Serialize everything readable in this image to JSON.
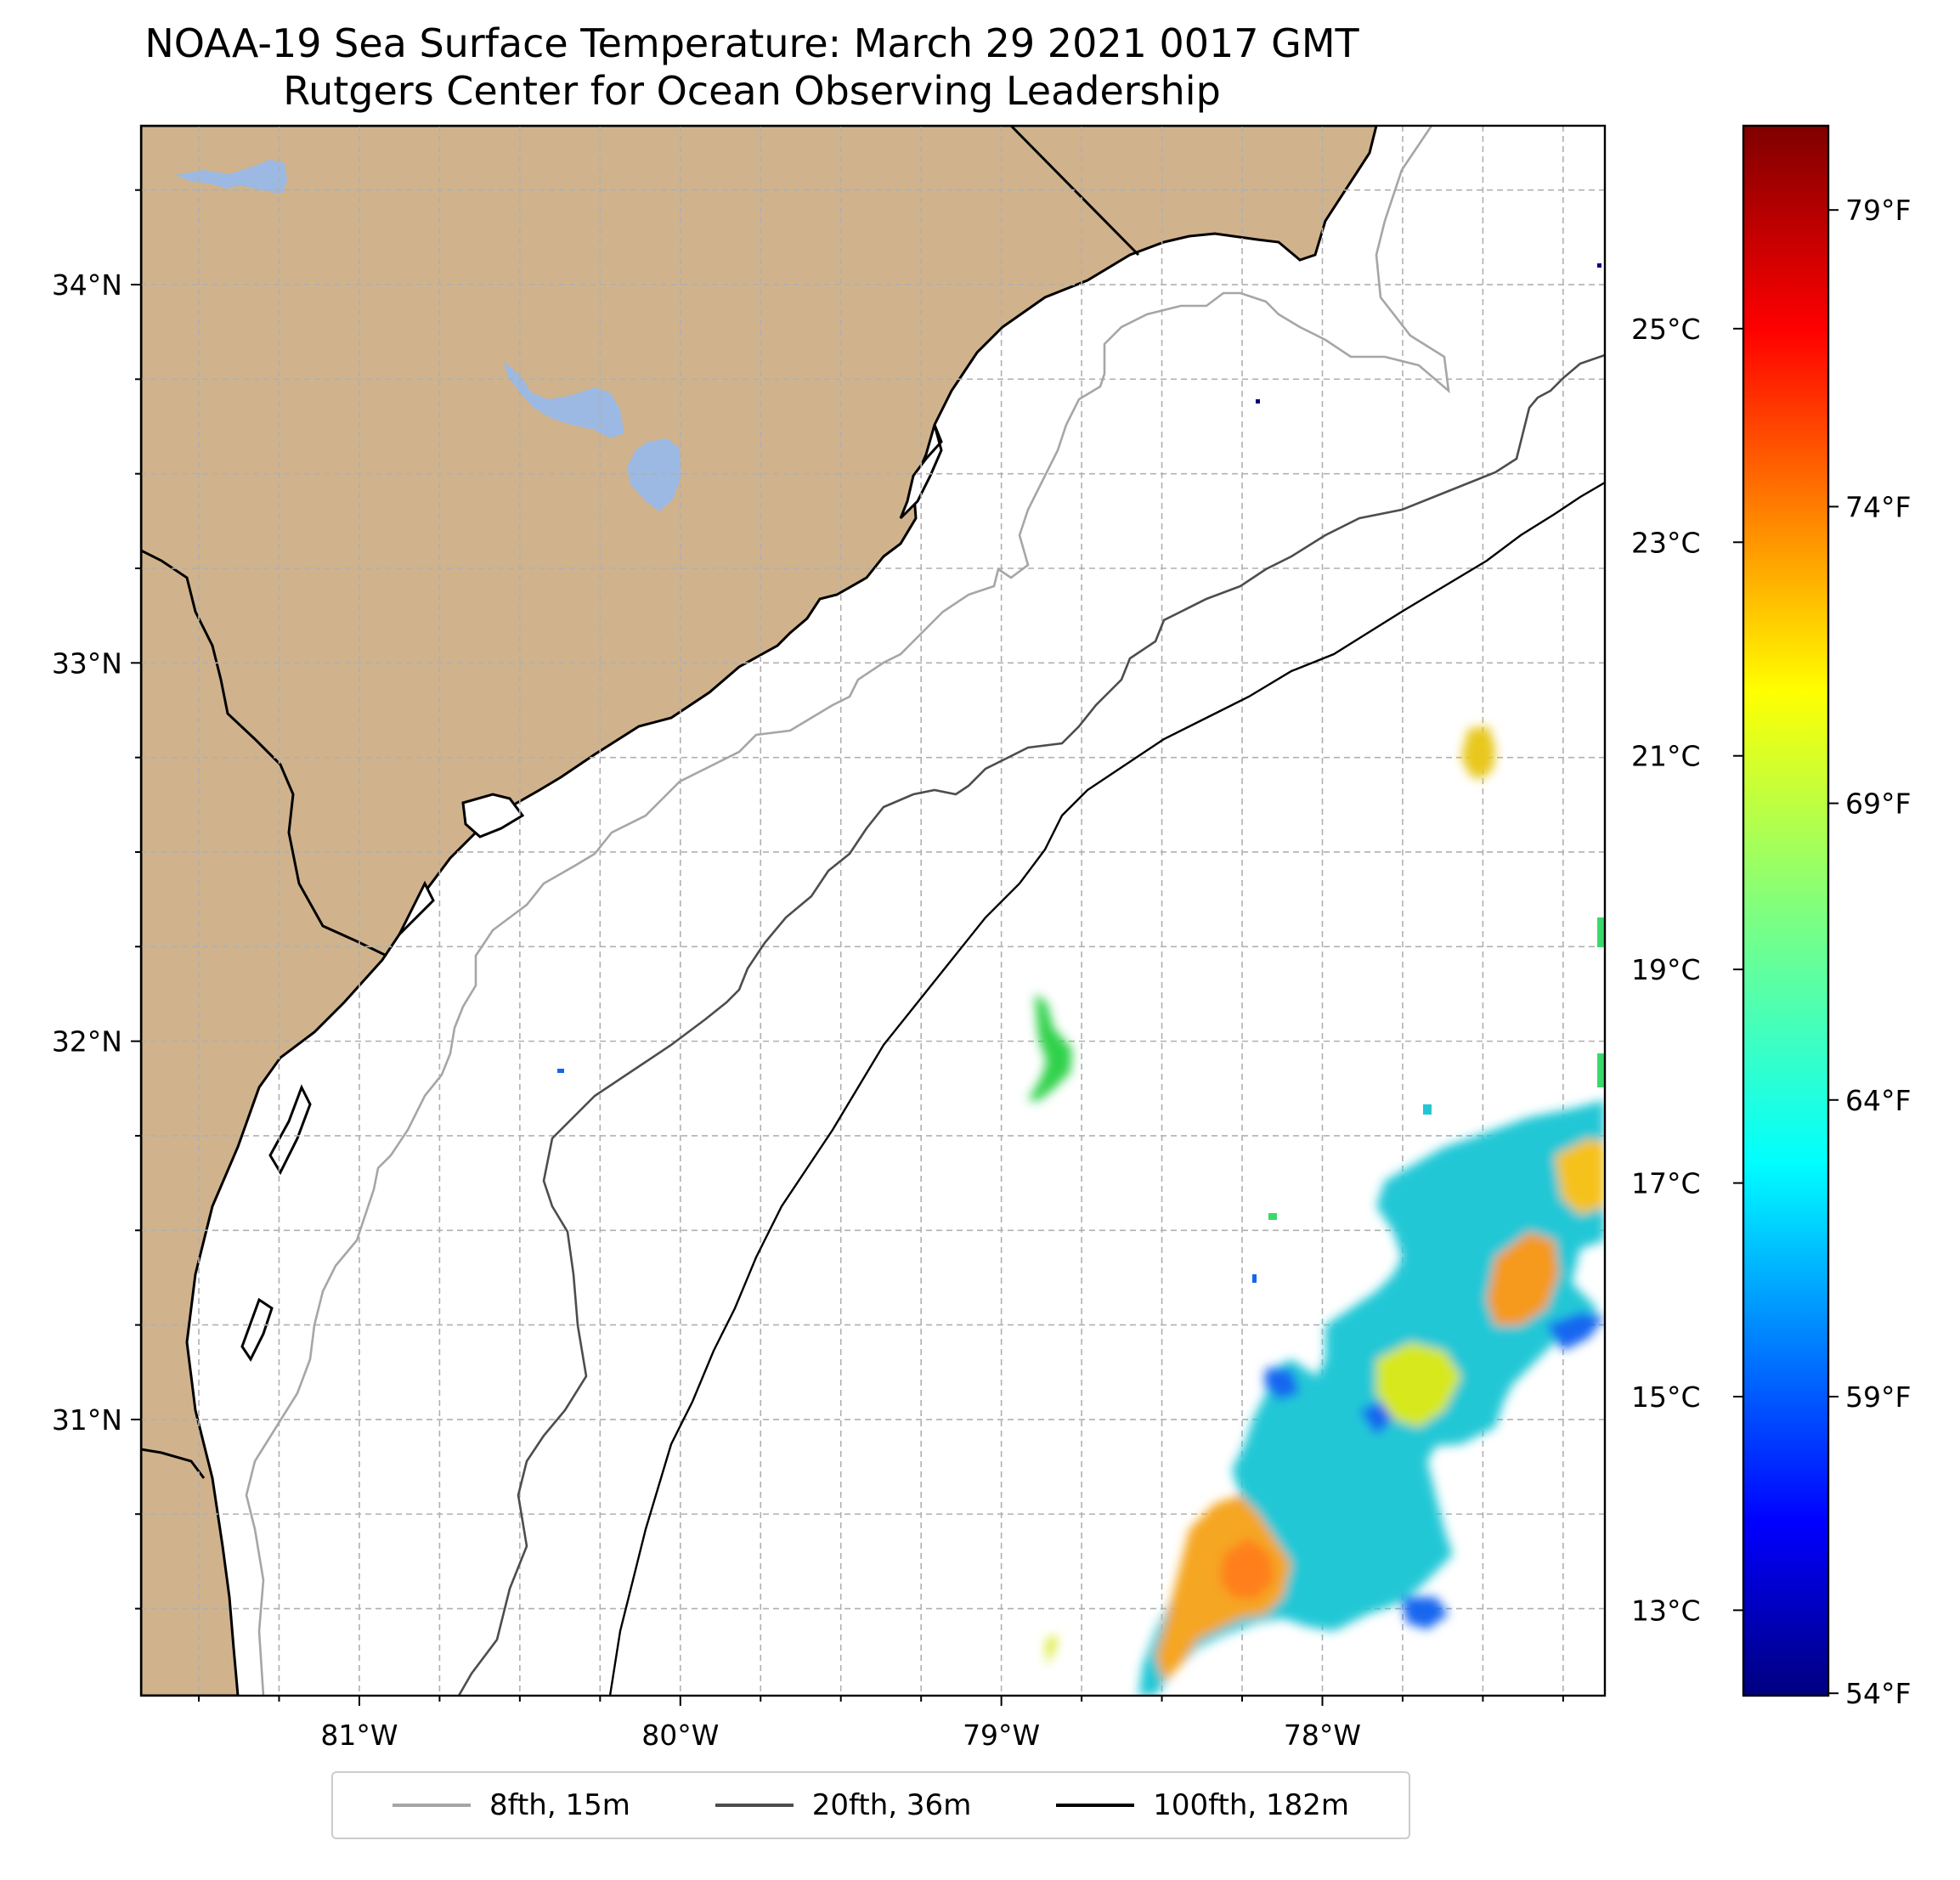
{
  "title": {
    "line1": "NOAA-19 Sea Surface Temperature: March 29 2021 0017 GMT",
    "line2": "Rutgers Center for Ocean Observing Leadership"
  },
  "map": {
    "extent": {
      "lon_min": -81.68,
      "lon_max": -77.12,
      "lat_min": 30.27,
      "lat_max": 34.42
    },
    "lat_ticks": [
      {
        "value": 34,
        "label": "34°N"
      },
      {
        "value": 33,
        "label": "33°N"
      },
      {
        "value": 32,
        "label": "32°N"
      },
      {
        "value": 31,
        "label": "31°N"
      }
    ],
    "lon_ticks": [
      {
        "value": -81,
        "label": "81°W"
      },
      {
        "value": -80,
        "label": "80°W"
      },
      {
        "value": -79,
        "label": "79°W"
      },
      {
        "value": -78,
        "label": "78°W"
      }
    ],
    "gridlines": true,
    "land_color": "#d0b38c",
    "lake_color": "#9cb9e3",
    "features": [
      "land",
      "coastline",
      "lakes",
      "state-border",
      "bathymetry-contours",
      "sst-patches"
    ]
  },
  "colorbar": {
    "colormap": "jet",
    "range_c": [
      12.2,
      26.9
    ],
    "celsius_ticks": [
      {
        "value": 25,
        "label": "25°C"
      },
      {
        "value": 23,
        "label": "23°C"
      },
      {
        "value": 21,
        "label": "21°C"
      },
      {
        "value": 19,
        "label": "19°C"
      },
      {
        "value": 17,
        "label": "17°C"
      },
      {
        "value": 15,
        "label": "15°C"
      },
      {
        "value": 13,
        "label": "13°C"
      }
    ],
    "fahrenheit_ticks": [
      {
        "value": 79,
        "label": "79°F"
      },
      {
        "value": 74,
        "label": "74°F"
      },
      {
        "value": 69,
        "label": "69°F"
      },
      {
        "value": 64,
        "label": "64°F"
      },
      {
        "value": 59,
        "label": "59°F"
      },
      {
        "value": 54,
        "label": "54°F"
      }
    ]
  },
  "legend": {
    "items": [
      {
        "label": "8fth, 15m",
        "color": "#a6a6a6"
      },
      {
        "label": "20fth, 36m",
        "color": "#4d4d4d"
      },
      {
        "label": "100fth, 182m",
        "color": "#000000"
      }
    ]
  }
}
